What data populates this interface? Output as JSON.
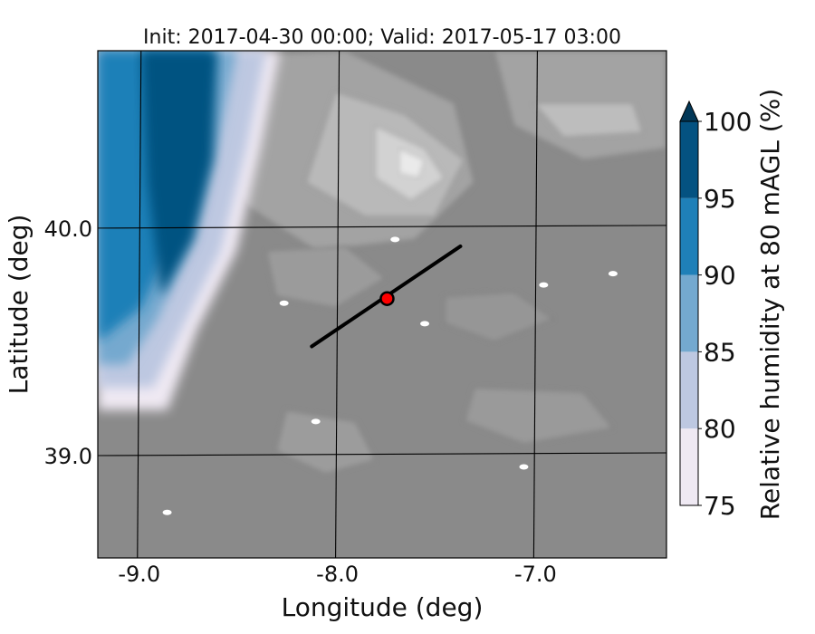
{
  "chart_data": {
    "type": "heatmap",
    "title": "Init: 2017-04-30 00:00; Valid: 2017-05-17 03:00",
    "xlabel": "Longitude (deg)",
    "ylabel": "Latitude (deg)",
    "xlim": [
      -9.2,
      -6.33
    ],
    "ylim": [
      38.55,
      40.78
    ],
    "x_ticks": [
      {
        "value": -9.0,
        "label": "-9.0"
      },
      {
        "value": -8.0,
        "label": "-8.0"
      },
      {
        "value": -7.0,
        "label": "-7.0"
      }
    ],
    "y_ticks": [
      {
        "value": 40.0,
        "label": "40.0"
      },
      {
        "value": 39.0,
        "label": "39.0"
      }
    ],
    "graticule": {
      "lons": [
        -9.0,
        -8.0,
        -7.0
      ],
      "lats": [
        40.0,
        39.0
      ]
    },
    "colorbar": {
      "label": "Relative humidity at 80 mAGL (%)",
      "min": 75,
      "max": 100,
      "extend": "max",
      "levels": [
        {
          "from": 75,
          "to": 80,
          "color": "#efe9f3"
        },
        {
          "from": 80,
          "to": 85,
          "color": "#bdc8e1"
        },
        {
          "from": 85,
          "to": 90,
          "color": "#74a9cf"
        },
        {
          "from": 90,
          "to": 95,
          "color": "#1f80b8"
        },
        {
          "from": 95,
          "to": 100,
          "color": "#045281"
        }
      ],
      "extend_color": "#023858",
      "tick_labels": [
        "75",
        "80",
        "85",
        "90",
        "95",
        "100"
      ]
    },
    "terrain_shading": {
      "low_color": "#8a8a8a",
      "high_color": "#eaeaea"
    },
    "cross_section_line": {
      "start": [
        -8.12,
        39.48
      ],
      "end": [
        -7.37,
        39.92
      ],
      "color": "#000000"
    },
    "site_marker": {
      "lon": -7.74,
      "lat": 39.69,
      "fill": "#ff0000",
      "edge": "#000000"
    }
  }
}
